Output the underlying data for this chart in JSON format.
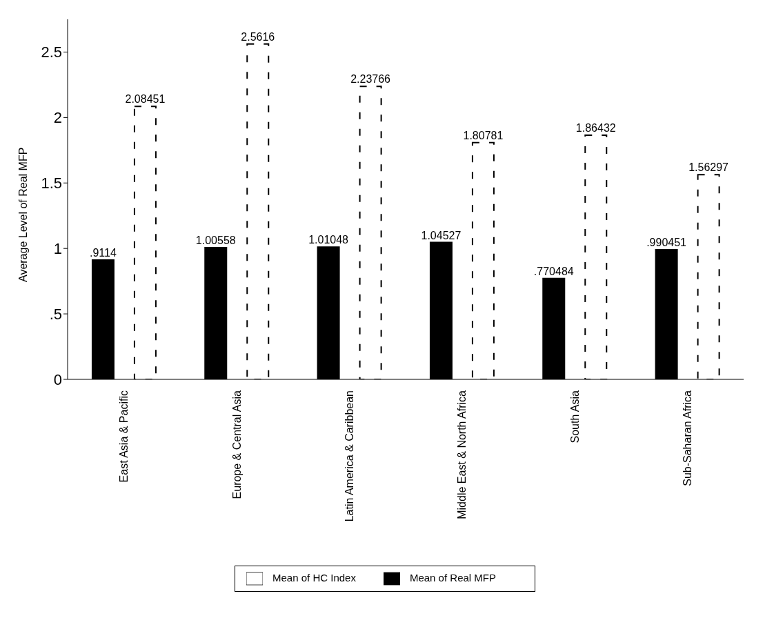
{
  "chart_data": {
    "type": "bar",
    "ylabel": "Average Level of Real MFP",
    "categories": [
      "East Asia & Pacific",
      "Europe & Central Asia",
      "Latin America & Caribbean",
      "Middle East & North Africa",
      "South Asia",
      "Sub-Saharan Africa"
    ],
    "series": [
      {
        "name": "Mean of Real MFP",
        "color": "#000000",
        "line_style": "solid",
        "values": [
          0.9114,
          1.00558,
          1.01048,
          1.04527,
          0.770484,
          0.990451
        ],
        "value_labels": [
          ".9114",
          "1.00558",
          "1.01048",
          "1.04527",
          ".770484",
          ".990451"
        ]
      },
      {
        "name": "Mean of HC Index",
        "color": "#ffffff",
        "line_style": "dashed",
        "values": [
          2.08451,
          2.5616,
          2.23766,
          1.80781,
          1.86432,
          1.56297
        ],
        "value_labels": [
          "2.08451",
          "2.5616",
          "2.23766",
          "1.80781",
          "1.86432",
          "1.56297"
        ]
      }
    ],
    "ylim": [
      0,
      2.75
    ],
    "yticks": [
      0,
      {
        "value": 0.5,
        "label": ".5"
      },
      1,
      1.5,
      2,
      2.5
    ],
    "grid": false,
    "legend": "bottom"
  }
}
